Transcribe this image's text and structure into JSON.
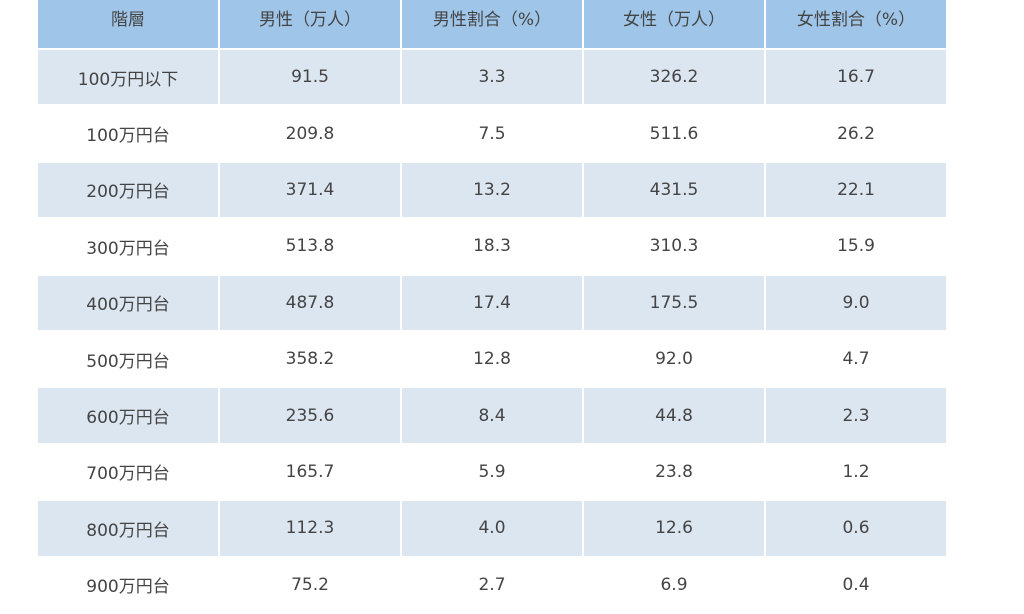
{
  "table": {
    "header": [
      "階層",
      "男性（万人）",
      "男性割合（%）",
      "女性（万人）",
      "女性割合（%）"
    ],
    "rows": [
      [
        "100万円以下",
        "91.5",
        "3.3",
        "326.2",
        "16.7"
      ],
      [
        "100万円台",
        "209.8",
        "7.5",
        "511.6",
        "26.2"
      ],
      [
        "200万円台",
        "371.4",
        "13.2",
        "431.5",
        "22.1"
      ],
      [
        "300万円台",
        "513.8",
        "18.3",
        "310.3",
        "15.9"
      ],
      [
        "400万円台",
        "487.8",
        "17.4",
        "175.5",
        "9.0"
      ],
      [
        "500万円台",
        "358.2",
        "12.8",
        "92.0",
        "4.7"
      ],
      [
        "600万円台",
        "235.6",
        "8.4",
        "44.8",
        "2.3"
      ],
      [
        "700万円台",
        "165.7",
        "5.9",
        "23.8",
        "1.2"
      ],
      [
        "800万円台",
        "112.3",
        "4.0",
        "12.6",
        "0.6"
      ],
      [
        "900万円台",
        "75.2",
        "2.7",
        "6.9",
        "0.4"
      ]
    ]
  }
}
